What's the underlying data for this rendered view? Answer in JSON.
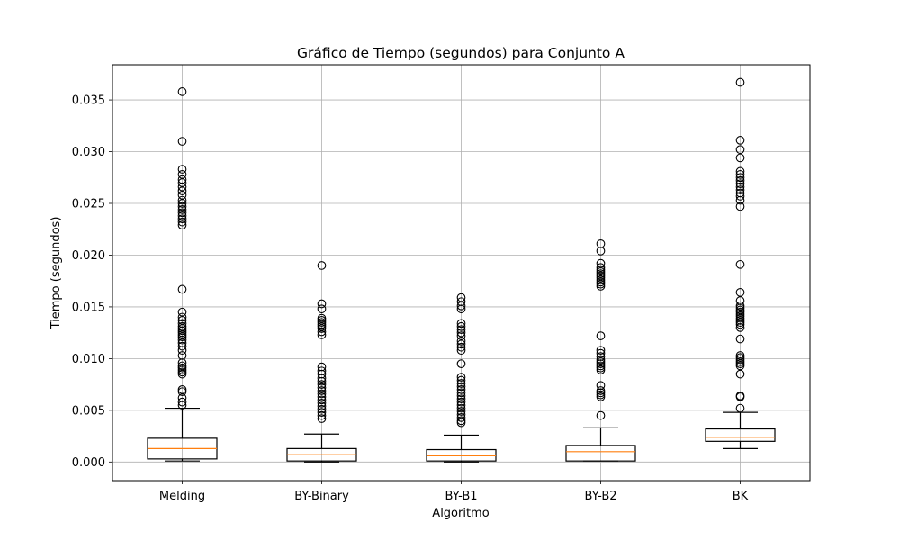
{
  "chart_data": {
    "type": "boxplot",
    "title": "Gráfico de Tiempo (segundos) para Conjunto A",
    "xlabel": "Algoritmo",
    "ylabel": "Tiempo (segundos)",
    "ylim": [
      -0.0018,
      0.0384
    ],
    "yticks": [
      0.0,
      0.005,
      0.01,
      0.015,
      0.02,
      0.025,
      0.03,
      0.035
    ],
    "ytick_labels": [
      "0.000",
      "0.005",
      "0.010",
      "0.015",
      "0.020",
      "0.025",
      "0.030",
      "0.035"
    ],
    "grid": true,
    "colors": {
      "box": "#000000",
      "median": "#ff7f0e",
      "grid": "#b0b0b0"
    },
    "categories": [
      "Melding",
      "BY-Binary",
      "BY-B1",
      "BY-B2",
      "BK"
    ],
    "boxes": [
      {
        "name": "Melding",
        "whisker_low": 0.0001,
        "q1": 0.0003,
        "median": 0.0013,
        "q3": 0.0023,
        "whisker_high": 0.0052,
        "outliers": [
          0.0055,
          0.0058,
          0.0062,
          0.0068,
          0.007,
          0.0085,
          0.0087,
          0.0089,
          0.0091,
          0.0093,
          0.0096,
          0.0103,
          0.0108,
          0.0112,
          0.0115,
          0.0118,
          0.0121,
          0.0123,
          0.0125,
          0.0127,
          0.0129,
          0.0131,
          0.0134,
          0.0137,
          0.014,
          0.0145,
          0.0167,
          0.0229,
          0.0232,
          0.0235,
          0.0238,
          0.0241,
          0.0244,
          0.0247,
          0.025,
          0.0253,
          0.0258,
          0.0262,
          0.0266,
          0.027,
          0.0273,
          0.0278,
          0.0283,
          0.031,
          0.0358
        ]
      },
      {
        "name": "BY-Binary",
        "whisker_low": 0.0,
        "q1": 0.0001,
        "median": 0.0007,
        "q3": 0.0013,
        "whisker_high": 0.0027,
        "outliers": [
          0.0042,
          0.0045,
          0.0048,
          0.0051,
          0.0054,
          0.0057,
          0.006,
          0.0063,
          0.0066,
          0.0069,
          0.0072,
          0.0075,
          0.0078,
          0.0081,
          0.0085,
          0.0088,
          0.0092,
          0.0123,
          0.0126,
          0.0129,
          0.0131,
          0.0133,
          0.0135,
          0.0137,
          0.0139,
          0.0148,
          0.0153,
          0.019
        ]
      },
      {
        "name": "BY-B1",
        "whisker_low": 0.0,
        "q1": 0.0001,
        "median": 0.0006,
        "q3": 0.0012,
        "whisker_high": 0.0026,
        "outliers": [
          0.0038,
          0.004,
          0.0043,
          0.0046,
          0.0049,
          0.0052,
          0.0055,
          0.0058,
          0.0061,
          0.0064,
          0.0067,
          0.007,
          0.0073,
          0.0076,
          0.0079,
          0.0082,
          0.0095,
          0.0108,
          0.0111,
          0.0114,
          0.0117,
          0.0122,
          0.0125,
          0.0128,
          0.0131,
          0.0134,
          0.0148,
          0.0151,
          0.0155,
          0.0159
        ]
      },
      {
        "name": "BY-B2",
        "whisker_low": 0.0001,
        "q1": 0.0001,
        "median": 0.001,
        "q3": 0.0016,
        "whisker_high": 0.0033,
        "outliers": [
          0.0045,
          0.0063,
          0.0065,
          0.0067,
          0.0069,
          0.0074,
          0.0089,
          0.0091,
          0.0093,
          0.0095,
          0.0097,
          0.0099,
          0.0102,
          0.0105,
          0.0108,
          0.0122,
          0.017,
          0.0172,
          0.0174,
          0.0176,
          0.0178,
          0.018,
          0.0182,
          0.0184,
          0.0186,
          0.0188,
          0.0192,
          0.0204,
          0.0211
        ]
      },
      {
        "name": "BK",
        "whisker_low": 0.0013,
        "q1": 0.002,
        "median": 0.0024,
        "q3": 0.0032,
        "whisker_high": 0.0048,
        "outliers": [
          0.0052,
          0.0063,
          0.0064,
          0.0085,
          0.0093,
          0.0095,
          0.0097,
          0.0099,
          0.0101,
          0.0103,
          0.0119,
          0.013,
          0.0133,
          0.0135,
          0.0137,
          0.0139,
          0.0141,
          0.0143,
          0.0145,
          0.0147,
          0.0149,
          0.0151,
          0.0156,
          0.0164,
          0.0191,
          0.0247,
          0.0253,
          0.0257,
          0.026,
          0.0263,
          0.0266,
          0.0269,
          0.0272,
          0.0275,
          0.0278,
          0.0281,
          0.0294,
          0.0302,
          0.0311,
          0.0367
        ]
      }
    ]
  }
}
